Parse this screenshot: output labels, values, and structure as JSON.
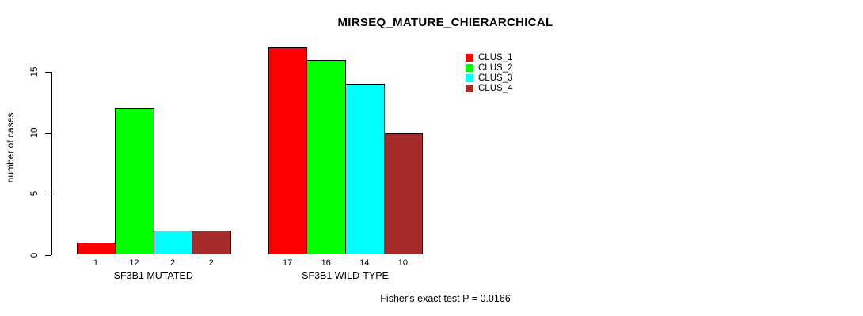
{
  "title": "MIRSEQ_MATURE_CHIERARCHICAL",
  "y_axis": {
    "label": "number of cases",
    "ticks": [
      0,
      5,
      10,
      15
    ]
  },
  "footer": {
    "text": "Fisher's exact test P = 0.0166"
  },
  "legend": {
    "items": [
      "CLUS_1",
      "CLUS_2",
      "CLUS_3",
      "CLUS_4"
    ]
  },
  "colors": {
    "background": "#FFFFFF",
    "axis": "#000000",
    "bar_border": "#000000",
    "clus_1": "#FF0000",
    "clus_2": "#00FF00",
    "clus_3": "#00FFFF",
    "clus_4": "#A52A2A"
  },
  "chart_data": {
    "type": "bar",
    "title": "MIRSEQ_MATURE_CHIERARCHICAL",
    "xlabel": "",
    "ylabel": "number of cases",
    "ylim": [
      0,
      17
    ],
    "yticks": [
      0,
      5,
      10,
      15
    ],
    "grid": false,
    "legend_position": "top-right-inside",
    "categories": [
      "SF3B1 MUTATED",
      "SF3B1 WILD-TYPE"
    ],
    "series": [
      {
        "name": "CLUS_1",
        "color": "#FF0000",
        "values": [
          1,
          17
        ]
      },
      {
        "name": "CLUS_2",
        "color": "#00FF00",
        "values": [
          12,
          16
        ]
      },
      {
        "name": "CLUS_3",
        "color": "#00FFFF",
        "values": [
          2,
          14
        ]
      },
      {
        "name": "CLUS_4",
        "color": "#A52A2A",
        "values": [
          2,
          10
        ]
      }
    ],
    "bar_value_labels": [
      [
        1,
        12,
        2,
        2
      ],
      [
        17,
        16,
        14,
        10
      ]
    ],
    "annotation": "Fisher's exact test P = 0.0166"
  }
}
